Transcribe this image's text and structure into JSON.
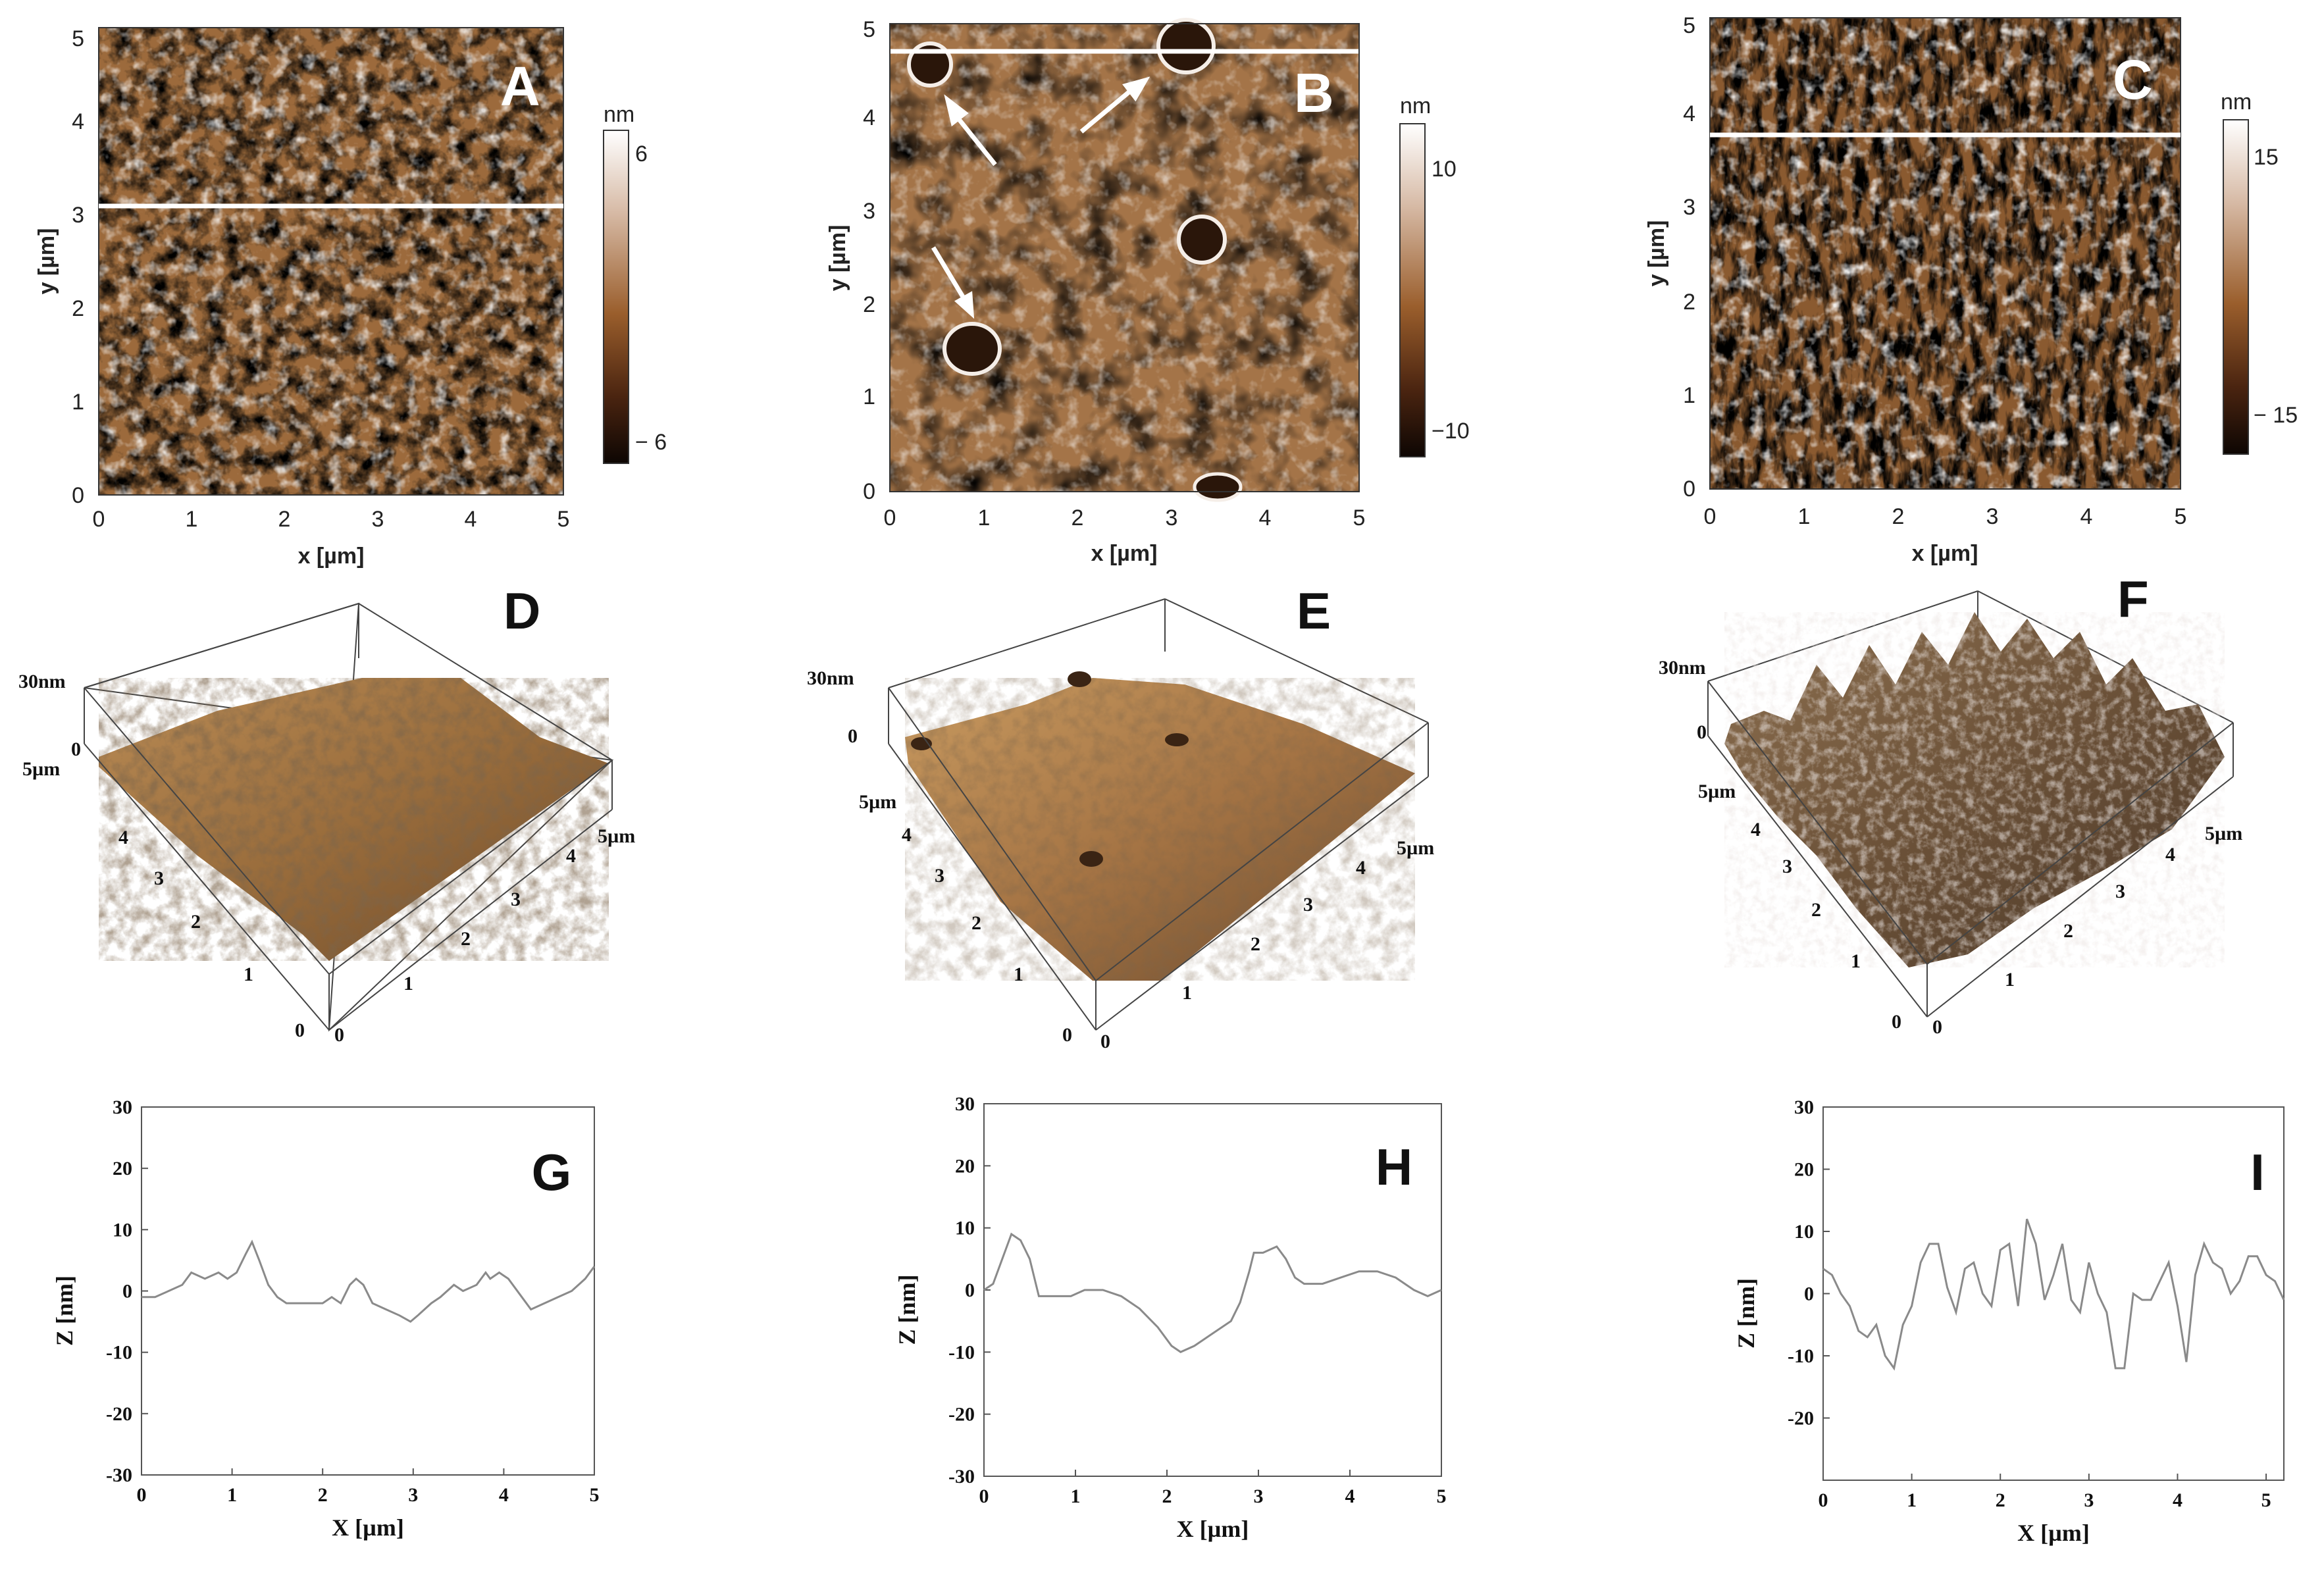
{
  "figure": {
    "panels_2d": [
      {
        "letter": "A",
        "xlabel": "x [µm]",
        "ylabel": "y [µm]",
        "ticks": [
          "0",
          "1",
          "2",
          "3",
          "4",
          "5"
        ],
        "colorbar": {
          "unit": "nm",
          "max_label": "6",
          "min_label": "− 6"
        },
        "line_profile_y": 3.1
      },
      {
        "letter": "B",
        "xlabel": "x [µm]",
        "ylabel": "y [µm]",
        "ticks": [
          "0",
          "1",
          "2",
          "3",
          "4",
          "5"
        ],
        "colorbar": {
          "unit": "nm",
          "max_label": "10",
          "min_label": "−10"
        },
        "line_profile_y": 4.75
      },
      {
        "letter": "C",
        "xlabel": "x [µm]",
        "ylabel": "y [µm]",
        "ticks": [
          "0",
          "1",
          "2",
          "3",
          "4",
          "5"
        ],
        "colorbar": {
          "unit": "nm",
          "max_label": "15",
          "min_label": "− 15"
        },
        "line_profile_y": 3.75
      }
    ],
    "panels_3d": [
      {
        "letter": "D",
        "z_top": "30nm",
        "z_zero": "0",
        "x_end": "5µm",
        "y_end": "5µm",
        "ticks": [
          "0",
          "1",
          "2",
          "3",
          "4"
        ]
      },
      {
        "letter": "E",
        "z_top": "30nm",
        "z_zero": "0",
        "x_end": "5µm",
        "y_end": "5µm",
        "ticks": [
          "0",
          "1",
          "2",
          "3",
          "4"
        ]
      },
      {
        "letter": "F",
        "z_top": "30nm",
        "z_zero": "0",
        "x_end": "5µm",
        "y_end": "5µm",
        "ticks": [
          "0",
          "1",
          "2",
          "3",
          "4"
        ]
      }
    ]
  },
  "chart_data": [
    {
      "type": "line",
      "panel": "G",
      "xlabel": "X [µm]",
      "ylabel": "Z [nm]",
      "xlim": [
        0,
        5
      ],
      "ylim": [
        -30,
        30
      ],
      "xticks": [
        "0",
        "1",
        "2",
        "3",
        "4",
        "5"
      ],
      "yticks": [
        "-30",
        "-20",
        "-10",
        "0",
        "10",
        "20",
        "30"
      ],
      "series": [
        {
          "x": [
            0,
            0.15,
            0.3,
            0.45,
            0.55,
            0.7,
            0.85,
            0.95,
            1.05,
            1.15,
            1.22,
            1.3,
            1.4,
            1.5,
            1.6,
            1.7,
            1.85,
            2.0,
            2.1,
            2.2,
            2.3,
            2.37,
            2.45,
            2.55,
            2.7,
            2.85,
            2.97,
            3.05,
            3.2,
            3.3,
            3.45,
            3.55,
            3.7,
            3.8,
            3.85,
            3.95,
            4.05,
            4.2,
            4.3,
            4.45,
            4.6,
            4.75,
            4.9,
            5.0
          ],
          "y": [
            -1,
            -1,
            0,
            1,
            3,
            2,
            3,
            2,
            3,
            6,
            8,
            5,
            1,
            -1,
            -2,
            -2,
            -2,
            -2,
            -1,
            -2,
            1,
            2,
            1,
            -2,
            -3,
            -4,
            -5,
            -4,
            -2,
            -1,
            1,
            0,
            1,
            3,
            2,
            3,
            2,
            -1,
            -3,
            -2,
            -1,
            0,
            2,
            4
          ]
        }
      ]
    },
    {
      "type": "line",
      "panel": "H",
      "xlabel": "X [µm]",
      "ylabel": "Z [nm]",
      "xlim": [
        0,
        5
      ],
      "ylim": [
        -30,
        30
      ],
      "xticks": [
        "0",
        "1",
        "2",
        "3",
        "4",
        "5"
      ],
      "yticks": [
        "-30",
        "-20",
        "-10",
        "0",
        "10",
        "20",
        "30"
      ],
      "series": [
        {
          "x": [
            0,
            0.1,
            0.2,
            0.3,
            0.4,
            0.5,
            0.6,
            0.7,
            0.8,
            0.95,
            1.1,
            1.3,
            1.5,
            1.7,
            1.9,
            2.05,
            2.15,
            2.3,
            2.5,
            2.7,
            2.8,
            2.9,
            2.95,
            3.05,
            3.2,
            3.3,
            3.4,
            3.5,
            3.7,
            3.9,
            4.1,
            4.3,
            4.5,
            4.7,
            4.85,
            5.0
          ],
          "y": [
            0,
            1,
            5,
            9,
            8,
            5,
            -1,
            -1,
            -1,
            -1,
            0,
            0,
            -1,
            -3,
            -6,
            -9,
            -10,
            -9,
            -7,
            -5,
            -2,
            3,
            6,
            6,
            7,
            5,
            2,
            1,
            1,
            2,
            3,
            3,
            2,
            0,
            -1,
            0
          ]
        }
      ]
    },
    {
      "type": "line",
      "panel": "I",
      "xlabel": "X [µm]",
      "ylabel": "Z [nm]",
      "xlim": [
        0,
        5.2
      ],
      "ylim": [
        -30,
        30
      ],
      "xticks": [
        "0",
        "1",
        "2",
        "3",
        "4",
        "5"
      ],
      "yticks": [
        "-20",
        "-10",
        "0",
        "10",
        "20",
        "30"
      ],
      "series": [
        {
          "x": [
            0,
            0.1,
            0.2,
            0.3,
            0.4,
            0.5,
            0.6,
            0.7,
            0.8,
            0.9,
            1.0,
            1.1,
            1.2,
            1.3,
            1.4,
            1.5,
            1.6,
            1.7,
            1.8,
            1.9,
            2.0,
            2.1,
            2.2,
            2.3,
            2.4,
            2.5,
            2.6,
            2.7,
            2.8,
            2.9,
            3.0,
            3.1,
            3.2,
            3.3,
            3.4,
            3.5,
            3.6,
            3.7,
            3.8,
            3.9,
            4.0,
            4.1,
            4.2,
            4.3,
            4.4,
            4.5,
            4.6,
            4.7,
            4.8,
            4.9,
            5.0,
            5.1,
            5.2
          ],
          "y": [
            4,
            3,
            0,
            -2,
            -6,
            -7,
            -5,
            -10,
            -12,
            -5,
            -2,
            5,
            8,
            8,
            1,
            -3,
            4,
            5,
            0,
            -2,
            7,
            8,
            -2,
            12,
            8,
            -1,
            3,
            8,
            -1,
            -3,
            5,
            0,
            -3,
            -12,
            -12,
            0,
            -1,
            -1,
            2,
            5,
            -2,
            -11,
            3,
            8,
            5,
            4,
            0,
            2,
            6,
            6,
            3,
            2,
            -1
          ]
        }
      ]
    }
  ]
}
